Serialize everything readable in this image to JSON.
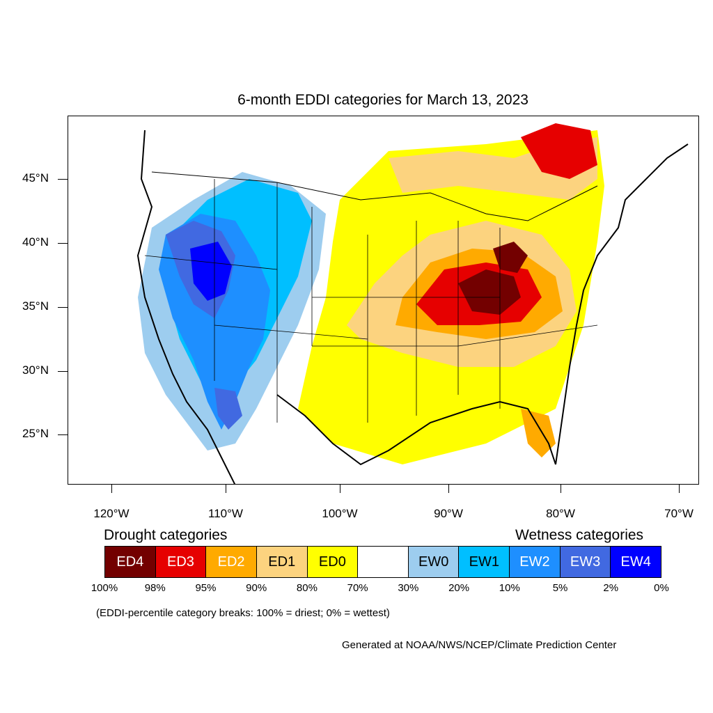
{
  "title": "6-month EDDI categories for March 13, 2023",
  "lat_labels": [
    "45°N",
    "40°N",
    "35°N",
    "30°N",
    "25°N"
  ],
  "lon_labels": [
    "120°W",
    "110°W",
    "100°W",
    "90°W",
    "80°W",
    "70°W"
  ],
  "legend": {
    "drought_heading": "Drought categories",
    "wetness_heading": "Wetness categories",
    "categories": [
      {
        "label": "ED4",
        "color": "#730000",
        "text_color": "#ffffff"
      },
      {
        "label": "ED3",
        "color": "#e60000",
        "text_color": "#ffffff"
      },
      {
        "label": "ED2",
        "color": "#ffaa00",
        "text_color": "#ffffff"
      },
      {
        "label": "ED1",
        "color": "#fcd37f",
        "text_color": "#000000"
      },
      {
        "label": "ED0",
        "color": "#ffff00",
        "text_color": "#000000"
      },
      {
        "label": "",
        "color": "#ffffff",
        "text_color": "#000000"
      },
      {
        "label": "EW0",
        "color": "#9dcdef",
        "text_color": "#000000"
      },
      {
        "label": "EW1",
        "color": "#00bfff",
        "text_color": "#000000"
      },
      {
        "label": "EW2",
        "color": "#1e8fff",
        "text_color": "#ffffff"
      },
      {
        "label": "EW3",
        "color": "#4169e1",
        "text_color": "#ffffff"
      },
      {
        "label": "EW4",
        "color": "#0000ff",
        "text_color": "#ffffff"
      }
    ],
    "breaks": [
      "100%",
      "98%",
      "95%",
      "90%",
      "80%",
      "70%",
      "30%",
      "20%",
      "10%",
      "5%",
      "2%",
      "0%"
    ],
    "note": "(EDDI-percentile category breaks: 100% = driest; 0% = wettest)"
  },
  "credit": "Generated at NOAA/NWS/NCEP/Climate Prediction Center"
}
